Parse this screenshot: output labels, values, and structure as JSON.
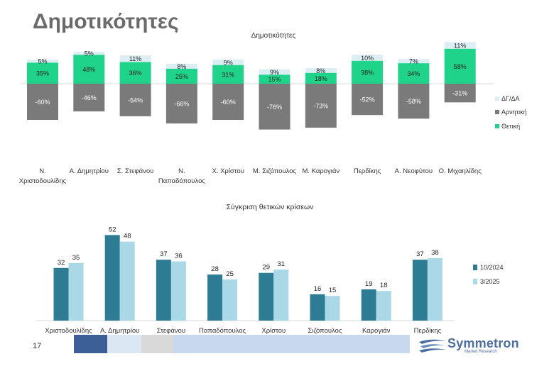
{
  "page": {
    "title": "Δημοτικότητες",
    "page_number": "17",
    "logo_text": "Symmetron",
    "logo_subtext": "Market Research"
  },
  "colors": {
    "positive": "#1fd38a",
    "negative": "#7a7a7a",
    "dk": "#dbeef4",
    "series_2024": "#2e7c93",
    "series_2025": "#aad8e6",
    "footer_1": "#3b5f96",
    "footer_2": "#dce7f4",
    "footer_3": "#d9d9d9",
    "footer_4": "#c8d8ee"
  },
  "chart_data": [
    {
      "type": "bar",
      "stacked": true,
      "title": "Δημοτικότητες",
      "categories": [
        "Ν. Χριστοδουλίδης",
        "Α. Δημητρίου",
        "Σ. Στεφάνου",
        "Ν. Παπαδόπουλος",
        "Χ. Χρίστου",
        "Μ. Σιζόπουλος",
        "Μ. Καρογιάν",
        "Περδίκης",
        "Α. Νεοφύτου",
        "Ο. Μιχαηλίδης"
      ],
      "category_lines": [
        [
          "Ν.",
          "Χριστοδουλίδης"
        ],
        [
          "Α. Δημητρίου"
        ],
        [
          "Σ. Στεφάνου"
        ],
        [
          "Ν.",
          "Παπαδόπουλος"
        ],
        [
          "Χ. Χρίστου"
        ],
        [
          "Μ. Σιζόπουλος"
        ],
        [
          "Μ. Καρογιάν"
        ],
        [
          "Περδίκης"
        ],
        [
          "Α. Νεοφύτου"
        ],
        [
          "Ο. Μιχαηλίδης"
        ]
      ],
      "series": [
        {
          "name": "ΔΓ/ΔΑ",
          "values": [
            5,
            5,
            11,
            8,
            9,
            9,
            8,
            10,
            7,
            11
          ],
          "labels": [
            "5%",
            "5%",
            "11%",
            "8%",
            "9%",
            "9%",
            "8%",
            "10%",
            "7%",
            "11%"
          ]
        },
        {
          "name": "Αρνητική",
          "values": [
            -60,
            -46,
            -54,
            -66,
            -60,
            -76,
            -73,
            -52,
            -58,
            -31
          ],
          "labels": [
            "-60%",
            "-46%",
            "-54%",
            "-66%",
            "-60%",
            "-76%",
            "-73%",
            "-52%",
            "-58%",
            "-31%"
          ]
        },
        {
          "name": "Θετική",
          "values": [
            35,
            48,
            36,
            25,
            31,
            15,
            18,
            38,
            34,
            58
          ],
          "labels": [
            "35%",
            "48%",
            "36%",
            "25%",
            "31%",
            "15%",
            "18%",
            "38%",
            "34%",
            "58%"
          ]
        }
      ],
      "legend_position": "right",
      "grid": false
    },
    {
      "type": "bar",
      "title": "Σύγκριση θετικών κρίσεων",
      "categories": [
        "Χριστοδουλίδης",
        "Α. Δημητρίου",
        "Στεφάνου",
        "Παπαδόπουλος",
        "Χρίστου",
        "Σιζόπουλος",
        "Καρογιάν",
        "Περδίκης"
      ],
      "series": [
        {
          "name": "10/2024",
          "values": [
            32,
            52,
            37,
            28,
            29,
            16,
            19,
            37
          ],
          "labels": [
            "32",
            "52",
            "37",
            "28",
            "29",
            "16",
            "19",
            "37"
          ]
        },
        {
          "name": "3/2025",
          "values": [
            35,
            48,
            36,
            25,
            31,
            15,
            18,
            38
          ],
          "labels": [
            "35",
            "48",
            "36",
            "25",
            "31",
            "15",
            "18",
            "38"
          ]
        }
      ],
      "legend_position": "right",
      "grid": false
    }
  ]
}
